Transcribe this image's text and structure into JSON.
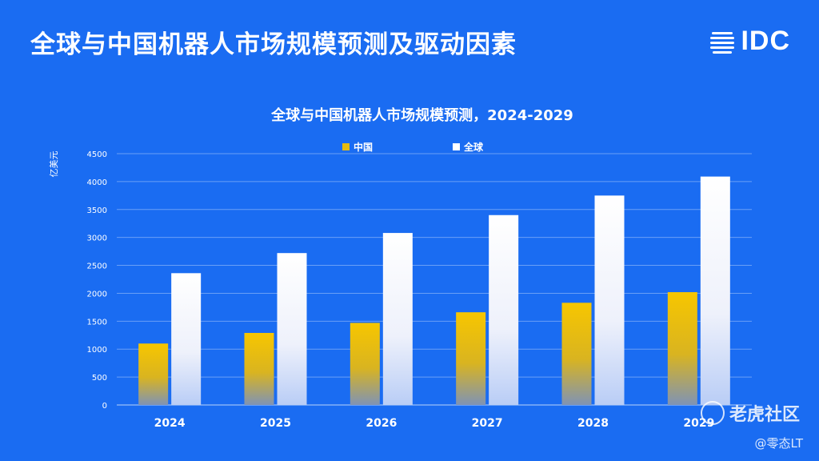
{
  "slide": {
    "title": "全球与中国机器人市场规模预测及驱动因素",
    "brand": "IDC"
  },
  "watermark": {
    "main": "老虎社区",
    "sub": "@零态LT"
  },
  "colors": {
    "background": "#1a6cf2",
    "china": "#f5c400",
    "global": "#ffffff"
  },
  "chart_data": {
    "type": "bar",
    "title": "全球与中国机器人市场规模预测，2024-2029",
    "ylabel": "亿美元",
    "xlabel": "",
    "categories": [
      "2024",
      "2025",
      "2026",
      "2027",
      "2028",
      "2029"
    ],
    "series": [
      {
        "name": "中国",
        "values": [
          1100,
          1290,
          1470,
          1660,
          1830,
          2020
        ]
      },
      {
        "name": "全球",
        "values": [
          2360,
          2720,
          3080,
          3400,
          3750,
          4090
        ]
      }
    ],
    "ylim": [
      0,
      4500
    ],
    "yticks": [
      0,
      500,
      1000,
      1500,
      2000,
      2500,
      3000,
      3500,
      4000,
      4500
    ],
    "grid": true,
    "legend": "top-center"
  }
}
